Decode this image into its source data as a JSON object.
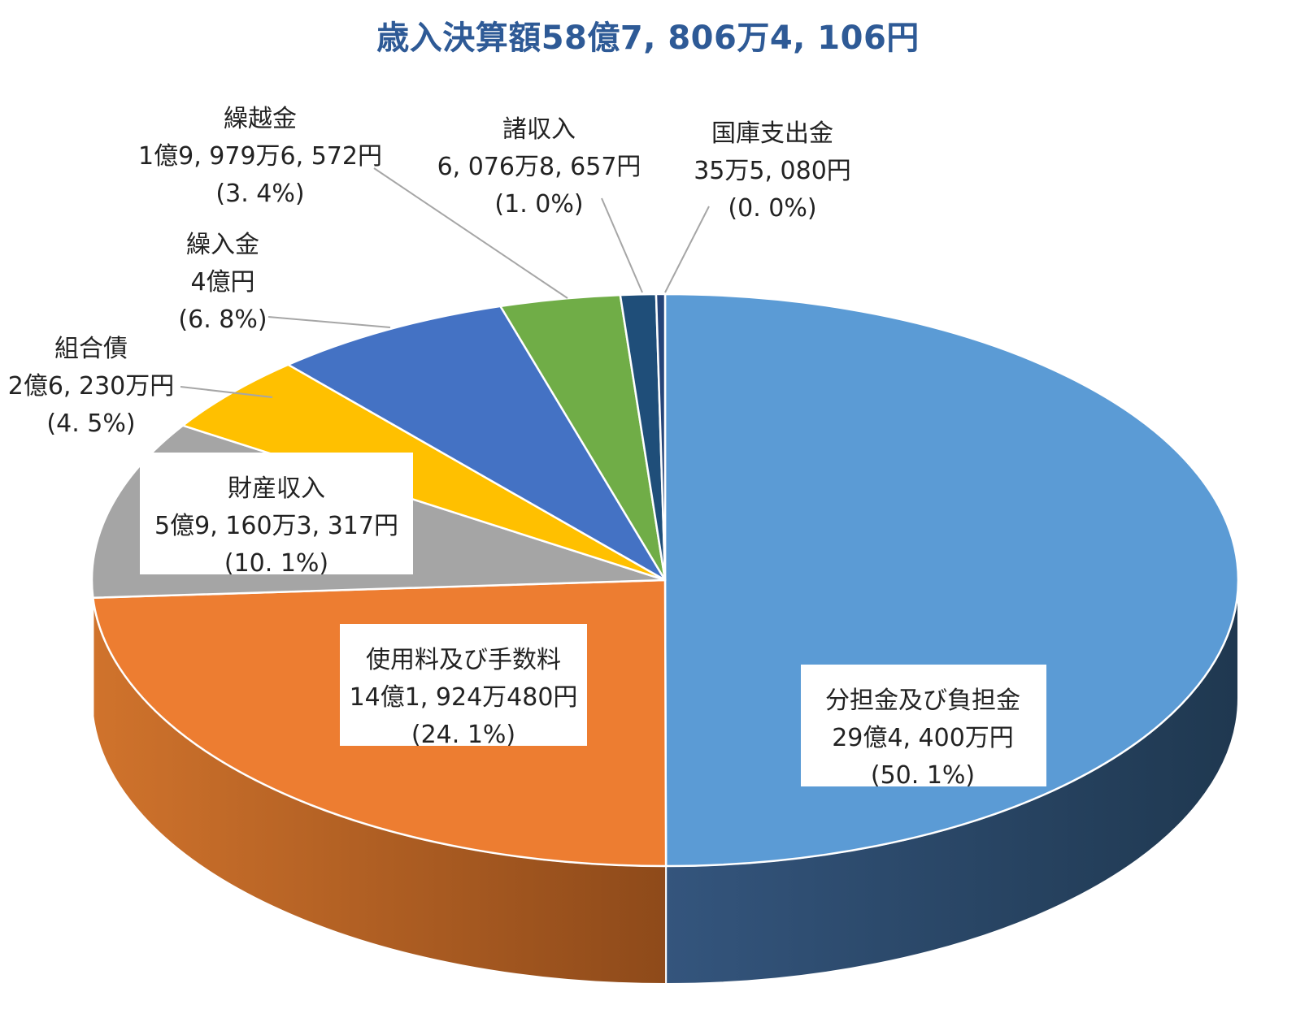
{
  "chart_data": {
    "type": "pie",
    "title": "歳入決算額58億7, 806万4, 106円",
    "slices": [
      {
        "label": "分担金及び負担金",
        "amount": "29億4, 400万円",
        "pct_text": "(50. 1%)",
        "value": 50.1,
        "color": "#5b9bd5",
        "side_color": "#243d5a"
      },
      {
        "label": "使用料及び手数料",
        "amount": "14億1, 924万480円",
        "pct_text": "(24. 1%)",
        "value": 24.1,
        "color": "#ed7d31",
        "side_color": "#b55c20"
      },
      {
        "label": "財産収入",
        "amount": "5億9, 160万3, 317円",
        "pct_text": "(10. 1%)",
        "value": 10.1,
        "color": "#a5a5a5",
        "side_color": "#7a7a7a"
      },
      {
        "label": "組合債",
        "amount": "2億6, 230万円",
        "pct_text": "(4. 5%)",
        "value": 4.5,
        "color": "#ffc000",
        "side_color": "#c79500"
      },
      {
        "label": "繰入金",
        "amount": "4億円",
        "pct_text": "(6. 8%)",
        "value": 6.8,
        "color": "#4472c4",
        "side_color": "#2f5597"
      },
      {
        "label": "繰越金",
        "amount": "1億9, 979万6, 572円",
        "pct_text": "(3. 4%)",
        "value": 3.4,
        "color": "#70ad47",
        "side_color": "#507e32"
      },
      {
        "label": "諸収入",
        "amount": "6, 076万8, 657円",
        "pct_text": "(1. 0%)",
        "value": 1.0,
        "color": "#1f4e79",
        "side_color": "#163a5c"
      },
      {
        "label": "国庫支出金",
        "amount": "35万5, 080円",
        "pct_text": "(0. 0%)",
        "value": 0.0,
        "color": "#264478",
        "side_color": "#1b3157"
      }
    ]
  }
}
